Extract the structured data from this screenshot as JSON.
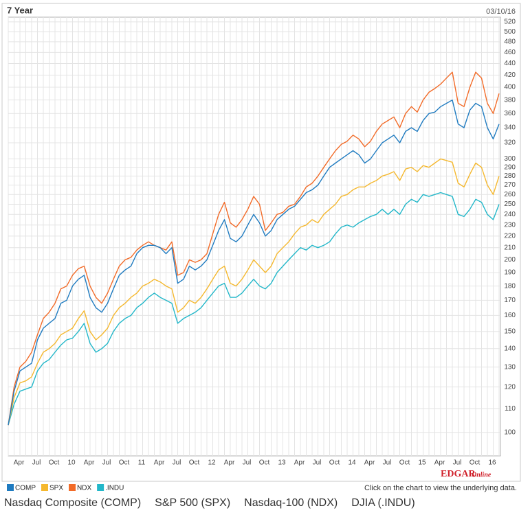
{
  "chart_data": {
    "type": "line",
    "title": "7 Year",
    "date": "03/10/16",
    "log": true,
    "grid": true,
    "note": "Click on the chart to view the underlying data.",
    "logo": [
      "EDGAR",
      "Online"
    ],
    "categories": [
      null,
      "Apr",
      null,
      null,
      "Jul",
      null,
      null,
      "Oct",
      null,
      null,
      "10",
      null,
      null,
      "Apr",
      null,
      null,
      "Jul",
      null,
      null,
      "Oct",
      null,
      null,
      "11",
      null,
      null,
      "Apr",
      null,
      null,
      "Jul",
      null,
      null,
      "Oct",
      null,
      null,
      "12",
      null,
      null,
      "Apr",
      null,
      null,
      "Jul",
      null,
      null,
      "Oct",
      null,
      null,
      "13",
      null,
      null,
      "Apr",
      null,
      null,
      "Jul",
      null,
      null,
      "Oct",
      null,
      null,
      "14",
      null,
      null,
      "Apr",
      null,
      null,
      "Jul",
      null,
      null,
      "Oct",
      null,
      null,
      "15",
      null,
      null,
      "Apr",
      null,
      null,
      "Jul",
      null,
      null,
      "Oct",
      null,
      null,
      "16",
      null,
      null
    ],
    "ylim": [
      91,
      530
    ],
    "yticks": [
      100,
      110,
      120,
      130,
      140,
      150,
      160,
      170,
      180,
      190,
      200,
      210,
      220,
      230,
      240,
      250,
      260,
      270,
      280,
      290,
      300,
      320,
      340,
      360,
      380,
      400,
      420,
      440,
      460,
      480,
      500,
      520
    ],
    "series": [
      {
        "name": "COMP",
        "color": "#1f7bc0",
        "values": [
          103,
          118,
          128,
          130,
          132,
          145,
          152,
          155,
          158,
          168,
          170,
          180,
          185,
          188,
          172,
          165,
          162,
          168,
          178,
          188,
          192,
          195,
          205,
          210,
          212,
          212,
          210,
          205,
          210,
          182,
          185,
          195,
          192,
          195,
          200,
          212,
          225,
          235,
          218,
          215,
          220,
          230,
          240,
          232,
          220,
          225,
          235,
          240,
          245,
          248,
          255,
          262,
          265,
          270,
          280,
          290,
          295,
          300,
          305,
          310,
          305,
          295,
          300,
          310,
          320,
          325,
          330,
          320,
          335,
          340,
          335,
          350,
          360,
          362,
          370,
          375,
          380,
          345,
          340,
          365,
          375,
          370,
          340,
          325,
          345
        ]
      },
      {
        "name": "SPX",
        "color": "#f5b82e",
        "values": [
          103,
          115,
          122,
          123,
          125,
          132,
          138,
          140,
          143,
          148,
          150,
          152,
          158,
          163,
          150,
          145,
          148,
          152,
          160,
          165,
          168,
          172,
          175,
          180,
          182,
          185,
          183,
          180,
          178,
          162,
          165,
          170,
          168,
          172,
          178,
          185,
          192,
          195,
          182,
          180,
          185,
          192,
          200,
          195,
          190,
          195,
          205,
          210,
          215,
          222,
          228,
          230,
          235,
          232,
          240,
          245,
          250,
          258,
          260,
          265,
          268,
          268,
          272,
          275,
          280,
          282,
          285,
          275,
          288,
          290,
          285,
          292,
          290,
          295,
          300,
          298,
          296,
          272,
          268,
          282,
          295,
          290,
          270,
          260,
          280
        ]
      },
      {
        "name": "NDX",
        "color": "#f26b28",
        "values": [
          103,
          120,
          130,
          133,
          138,
          148,
          158,
          162,
          168,
          178,
          180,
          188,
          193,
          195,
          180,
          172,
          168,
          175,
          185,
          195,
          200,
          202,
          208,
          212,
          215,
          212,
          210,
          208,
          215,
          188,
          190,
          200,
          198,
          200,
          205,
          222,
          240,
          252,
          232,
          228,
          235,
          245,
          258,
          250,
          225,
          232,
          240,
          242,
          248,
          250,
          258,
          268,
          272,
          280,
          290,
          300,
          310,
          318,
          322,
          330,
          325,
          315,
          322,
          335,
          345,
          350,
          355,
          340,
          360,
          370,
          362,
          380,
          392,
          398,
          405,
          415,
          425,
          375,
          370,
          400,
          425,
          415,
          375,
          360,
          390
        ]
      },
      {
        "name": ".INDU",
        "color": "#22b7c9",
        "values": [
          103,
          112,
          118,
          119,
          120,
          128,
          132,
          134,
          138,
          142,
          145,
          146,
          150,
          155,
          143,
          138,
          140,
          143,
          150,
          155,
          158,
          160,
          165,
          168,
          172,
          175,
          172,
          170,
          168,
          155,
          158,
          160,
          162,
          165,
          170,
          175,
          180,
          182,
          172,
          172,
          175,
          180,
          185,
          180,
          178,
          182,
          190,
          195,
          200,
          205,
          210,
          208,
          212,
          210,
          212,
          215,
          222,
          228,
          230,
          228,
          232,
          235,
          238,
          240,
          245,
          240,
          245,
          240,
          250,
          255,
          252,
          260,
          258,
          260,
          262,
          260,
          258,
          240,
          238,
          245,
          255,
          252,
          240,
          235,
          250
        ]
      }
    ]
  },
  "footer": [
    "Nasdaq Composite (COMP)",
    "S&P 500 (SPX)",
    "Nasdaq-100 (NDX)",
    "DJIA (.INDU)"
  ]
}
